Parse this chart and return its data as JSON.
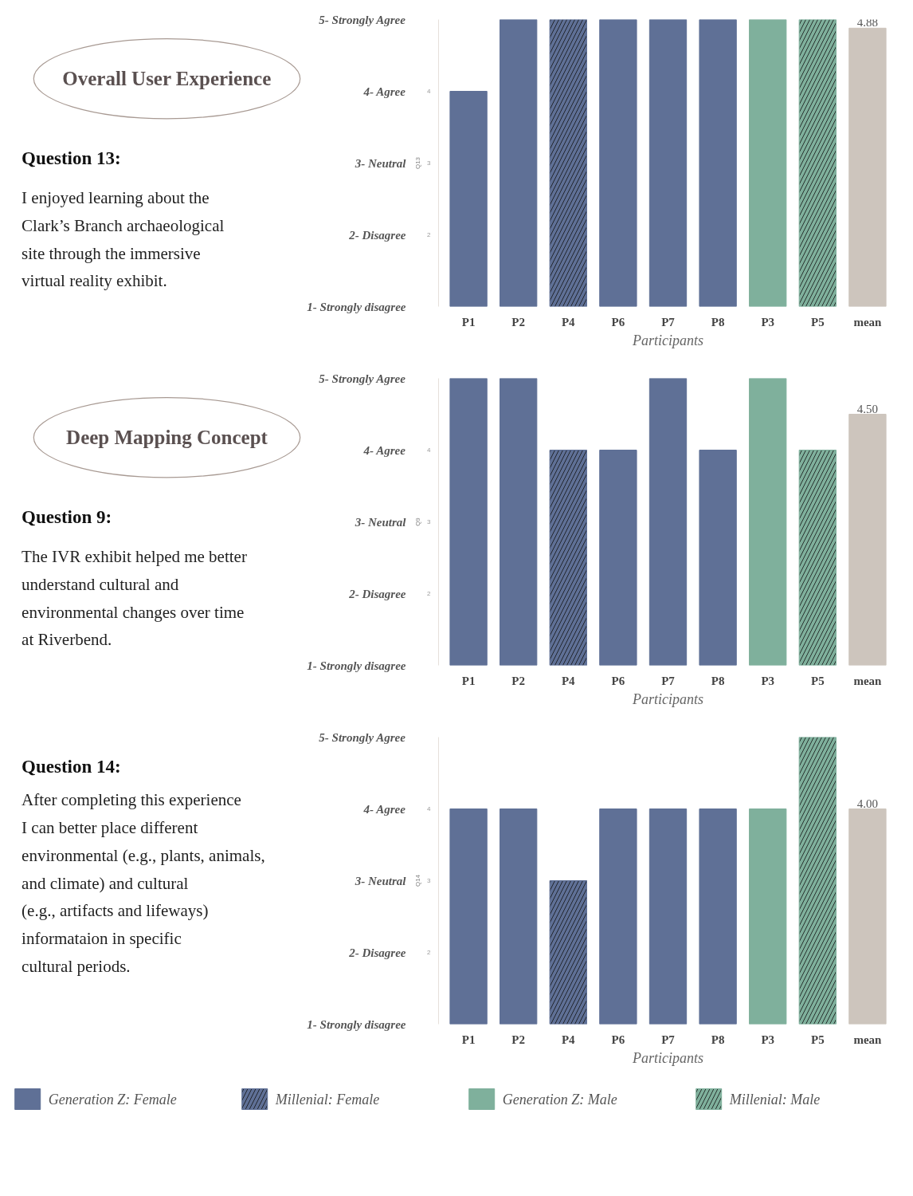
{
  "chart_data": [
    {
      "type": "bar",
      "title": "Overall User Experience",
      "annotations": [
        "Question 13:",
        "I enjoyed learning about the\nClark’s Branch archaeological\nsite through the immersive\nvirtual reality exhibit."
      ],
      "xlabel": "Participants",
      "y2label": "Q13",
      "categories": [
        "P1",
        "P2",
        "P4",
        "P6",
        "P7",
        "P8",
        "P3",
        "P5",
        "mean"
      ],
      "ylim": [
        1,
        5
      ],
      "yticks": [
        {
          "value": 1,
          "label": "1- Strongly disagree"
        },
        {
          "value": 2,
          "label": "2- Disagree"
        },
        {
          "value": 3,
          "label": "3- Neutral"
        },
        {
          "value": 4,
          "label": "4- Agree"
        },
        {
          "value": 5,
          "label": "5- Strongly Agree"
        }
      ],
      "y2lim": [
        1,
        5
      ],
      "y2ticks": [
        2,
        3,
        4
      ],
      "grid": false,
      "series": [
        {
          "color": "#5f7096",
          "values": [
            4,
            5,
            null,
            5,
            5,
            5,
            null,
            null,
            null
          ]
        },
        {
          "color": "#5f7096",
          "values": [
            null,
            null,
            5,
            null,
            null,
            null,
            null,
            null,
            null
          ]
        },
        {
          "color": "#7fb09c",
          "values": [
            null,
            null,
            null,
            null,
            null,
            null,
            5,
            null,
            null
          ]
        },
        {
          "color": "#7fb09c",
          "values": [
            null,
            null,
            null,
            null,
            null,
            null,
            null,
            5,
            null
          ]
        },
        {
          "color": "#cdc5bd",
          "values": [
            null,
            null,
            null,
            null,
            null,
            null,
            null,
            null,
            4.88
          ],
          "value_labels": [
            null,
            null,
            null,
            null,
            null,
            null,
            null,
            null,
            "4.88"
          ]
        }
      ]
    },
    {
      "type": "bar",
      "title": "Deep Mapping Concept",
      "annotations": [
        "Question 9:",
        "The IVR exhibit helped me better\nunderstand cultural and\nenvironmental changes over time\nat Riverbend."
      ],
      "xlabel": "Participants",
      "y2label": "Q9",
      "categories": [
        "P1",
        "P2",
        "P4",
        "P6",
        "P7",
        "P8",
        "P3",
        "P5",
        "mean"
      ],
      "ylim": [
        1,
        5
      ],
      "yticks": [
        {
          "value": 1,
          "label": "1- Strongly disagree"
        },
        {
          "value": 2,
          "label": "2- Disagree"
        },
        {
          "value": 3,
          "label": "3- Neutral"
        },
        {
          "value": 4,
          "label": "4- Agree"
        },
        {
          "value": 5,
          "label": "5- Strongly Agree"
        }
      ],
      "y2lim": [
        1,
        5
      ],
      "y2ticks": [
        2,
        3,
        4
      ],
      "grid": false,
      "series": [
        {
          "color": "#5f7096",
          "values": [
            5,
            5,
            null,
            4,
            5,
            4,
            null,
            null,
            null
          ]
        },
        {
          "color": "#5f7096",
          "values": [
            null,
            null,
            4,
            null,
            null,
            null,
            null,
            null,
            null
          ]
        },
        {
          "color": "#7fb09c",
          "values": [
            null,
            null,
            null,
            null,
            null,
            null,
            5,
            null,
            null
          ]
        },
        {
          "color": "#7fb09c",
          "values": [
            null,
            null,
            null,
            null,
            null,
            null,
            null,
            4,
            null
          ]
        },
        {
          "color": "#cdc5bd",
          "values": [
            null,
            null,
            null,
            null,
            null,
            null,
            null,
            null,
            4.5
          ],
          "value_labels": [
            null,
            null,
            null,
            null,
            null,
            null,
            null,
            null,
            "4.50"
          ]
        }
      ]
    },
    {
      "type": "bar",
      "annotations": [
        "Question 14:",
        "After completing this experience\nI can better place different\nenvironmental (e.g., plants, animals,\nand climate) and cultural\n(e.g., artifacts and lifeways)\ninformataion in specific\ncultural periods."
      ],
      "xlabel": "Participants",
      "y2label": "Q14",
      "categories": [
        "P1",
        "P2",
        "P4",
        "P6",
        "P7",
        "P8",
        "P3",
        "P5",
        "mean"
      ],
      "ylim": [
        1,
        5
      ],
      "yticks": [
        {
          "value": 1,
          "label": "1- Strongly disagree"
        },
        {
          "value": 2,
          "label": "2- Disagree"
        },
        {
          "value": 3,
          "label": "3- Neutral"
        },
        {
          "value": 4,
          "label": "4- Agree"
        },
        {
          "value": 5,
          "label": "5- Strongly Agree"
        }
      ],
      "y2lim": [
        1,
        5
      ],
      "y2ticks": [
        2,
        3,
        4
      ],
      "grid": false,
      "legend": "bottom",
      "series": [
        {
          "name": "Generation Z: Female",
          "color": "#5f7096",
          "values": [
            4,
            4,
            null,
            4,
            4,
            4,
            null,
            null,
            null
          ]
        },
        {
          "name": "Millenial: Female",
          "color": "#5f7096",
          "values": [
            null,
            null,
            3,
            null,
            null,
            null,
            null,
            null,
            null
          ]
        },
        {
          "name": "Generation Z: Male",
          "color": "#7fb09c",
          "values": [
            null,
            null,
            null,
            null,
            null,
            null,
            4,
            null,
            null
          ]
        },
        {
          "name": "Millenial: Male",
          "color": "#7fb09c",
          "values": [
            null,
            null,
            null,
            null,
            null,
            null,
            null,
            5,
            null
          ]
        },
        {
          "color": "#cdc5bd",
          "values": [
            null,
            null,
            null,
            null,
            null,
            null,
            null,
            null,
            4.0
          ],
          "value_labels": [
            null,
            null,
            null,
            null,
            null,
            null,
            null,
            null,
            "4.00"
          ]
        }
      ]
    }
  ]
}
